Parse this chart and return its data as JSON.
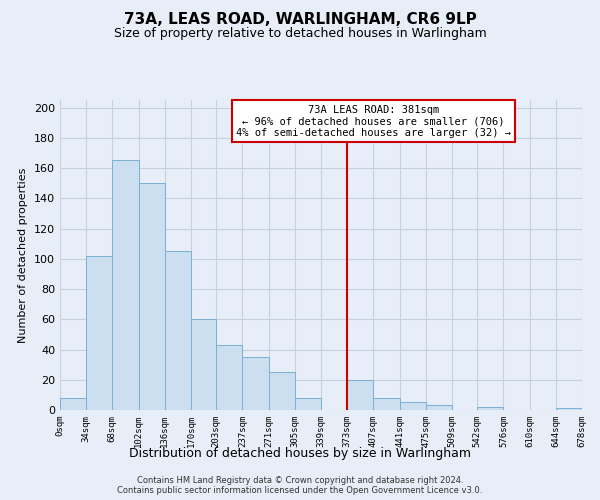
{
  "title": "73A, LEAS ROAD, WARLINGHAM, CR6 9LP",
  "subtitle": "Size of property relative to detached houses in Warlingham",
  "xlabel": "Distribution of detached houses by size in Warlingham",
  "ylabel": "Number of detached properties",
  "bar_color": "#ccdff0",
  "bar_edge_color": "#7ab0d4",
  "background_color": "#e8eef8",
  "grid_color": "#c8d0e0",
  "vline_x": 373,
  "vline_color": "#cc0000",
  "bin_edges": [
    0,
    34,
    68,
    102,
    136,
    170,
    203,
    237,
    271,
    305,
    339,
    373,
    407,
    441,
    475,
    509,
    542,
    576,
    610,
    644,
    678
  ],
  "bin_counts": [
    8,
    102,
    165,
    150,
    105,
    60,
    43,
    35,
    25,
    8,
    0,
    20,
    8,
    5,
    3,
    0,
    2,
    0,
    0,
    1
  ],
  "tick_labels": [
    "0sqm",
    "34sqm",
    "68sqm",
    "102sqm",
    "136sqm",
    "170sqm",
    "203sqm",
    "237sqm",
    "271sqm",
    "305sqm",
    "339sqm",
    "373sqm",
    "407sqm",
    "441sqm",
    "475sqm",
    "509sqm",
    "542sqm",
    "576sqm",
    "610sqm",
    "644sqm",
    "678sqm"
  ],
  "ylim": [
    0,
    205
  ],
  "yticks": [
    0,
    20,
    40,
    60,
    80,
    100,
    120,
    140,
    160,
    180,
    200
  ],
  "annotation_title": "73A LEAS ROAD: 381sqm",
  "annotation_line1": "← 96% of detached houses are smaller (706)",
  "annotation_line2": "4% of semi-detached houses are larger (32) →",
  "footnote1": "Contains HM Land Registry data © Crown copyright and database right 2024.",
  "footnote2": "Contains public sector information licensed under the Open Government Licence v3.0."
}
